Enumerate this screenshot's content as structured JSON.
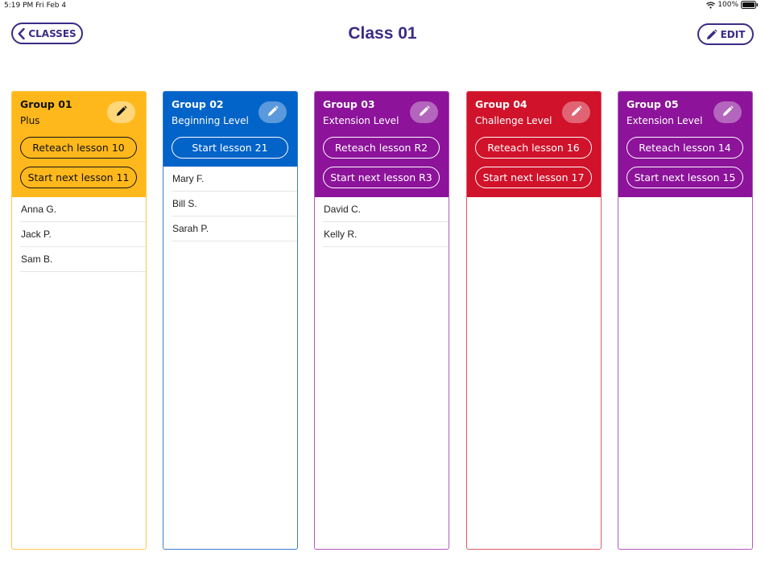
{
  "status_bar": {
    "time": "5:19 PM",
    "date": "Fri Feb 4",
    "battery": "100%"
  },
  "nav": {
    "back_label": "CLASSES",
    "title": "Class 01",
    "edit_label": "EDIT"
  },
  "colors": {
    "accent": "#3b2b86",
    "yellow": "#ffb81c",
    "blue": "#0263c8",
    "purple": "#8c139a",
    "red": "#d0122a"
  },
  "groups": [
    {
      "name": "Group 01",
      "level": "Plus",
      "theme": "yellow",
      "buttons": [
        "Reteach lesson 10",
        "Start next lesson 11"
      ],
      "students": [
        "Anna  G.",
        "Jack  P.",
        "Sam B."
      ]
    },
    {
      "name": "Group 02",
      "level": "Beginning Level",
      "theme": "blue",
      "buttons": [
        "Start lesson 21"
      ],
      "students": [
        "Mary F.",
        "Bill S.",
        "Sarah P."
      ]
    },
    {
      "name": "Group 03",
      "level": "Extension Level",
      "theme": "purple",
      "buttons": [
        "Reteach lesson R2",
        "Start next lesson R3"
      ],
      "students": [
        "David C.",
        "Kelly  R."
      ]
    },
    {
      "name": "Group 04",
      "level": "Challenge Level",
      "theme": "red",
      "buttons": [
        "Reteach lesson 16",
        "Start next lesson 17"
      ],
      "students": []
    },
    {
      "name": "Group 05",
      "level": "Extension Level",
      "theme": "purple",
      "buttons": [
        "Reteach lesson 14",
        "Start next lesson 15"
      ],
      "students": []
    }
  ]
}
